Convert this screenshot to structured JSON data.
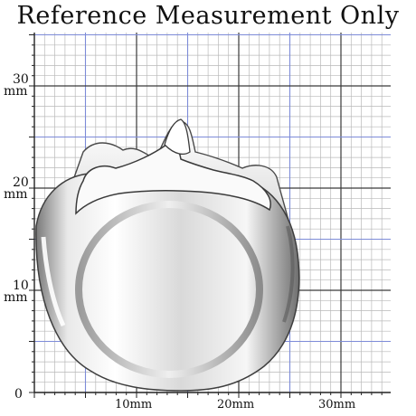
{
  "title": "Reference Measurement Only",
  "y_labels": [
    {
      "num": "30",
      "unit": "mm",
      "value_mm": 30
    },
    {
      "num": "20",
      "unit": "mm",
      "value_mm": 20
    },
    {
      "num": "10",
      "unit": "mm",
      "value_mm": 10
    }
  ],
  "origin_label": "0",
  "x_labels": [
    {
      "text": "10mm",
      "value_mm": 10
    },
    {
      "text": "20mm",
      "value_mm": 20
    },
    {
      "text": "30mm",
      "value_mm": 30
    }
  ],
  "colors": {
    "grid_minor": "#b9b9b9",
    "grid_major": "#3a3a3a",
    "grid_blue": "#7d8bd8",
    "metal_light": "#f4f4f4",
    "metal_dark": "#5c5c5c"
  },
  "subject": "silver-ring-icon"
}
